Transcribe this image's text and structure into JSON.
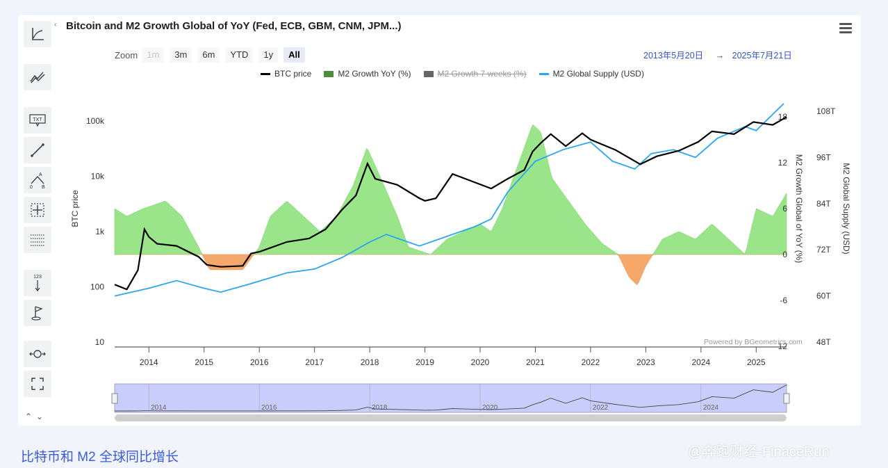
{
  "header": {
    "title": "Bitcoin and M2 Growth Global of YoY (Fed, ECB, GBM, CNM, JPM...)"
  },
  "zoom": {
    "label": "Zoom",
    "buttons": [
      {
        "label": "1m",
        "state": "disabled"
      },
      {
        "label": "3m",
        "state": "normal"
      },
      {
        "label": "6m",
        "state": "normal"
      },
      {
        "label": "YTD",
        "state": "normal"
      },
      {
        "label": "1y",
        "state": "normal"
      },
      {
        "label": "All",
        "state": "active"
      }
    ]
  },
  "date_range": {
    "from": "2013年5月20日",
    "arrow": "→",
    "to": "2025年7月21日"
  },
  "legend": [
    {
      "label": "BTC price",
      "color": "#000000",
      "kind": "line",
      "hidden": false
    },
    {
      "label": "M2 Growth YoY (%)",
      "color": "#4e8d3a",
      "kind": "area",
      "hidden": false
    },
    {
      "label": "M2 Growth 7 weeks (%)",
      "color": "#666666",
      "kind": "area",
      "hidden": true
    },
    {
      "label": "M2 Global Supply (USD)",
      "color": "#2aa6f0",
      "kind": "line",
      "hidden": false
    }
  ],
  "powered_by": "Powered by BGeometrics.com",
  "toolbar": {
    "icons": [
      "axes-icon",
      "indicators-icon",
      "text-annotation-icon",
      "line-draw-icon",
      "measure-ab-icon",
      "crosshair-icon",
      "horizontal-lines-icon",
      "vertical-counter-icon",
      "flag-icon",
      "zoom-reset-icon",
      "fullscreen-icon"
    ],
    "txt_label": "TXT",
    "counter_label": "123",
    "a_label": "A",
    "zero_label": "0",
    "b_label": "B",
    "collapse_glyph": "‹",
    "updown_glyph": "⌃⌄"
  },
  "footer": {
    "caption": "比特币和 M2 全球同比增长",
    "watermark": "@奔跑财经-FinaceRun"
  },
  "chart_data": {
    "type": "line",
    "title": "Bitcoin and M2 Growth Global of YoY (Fed, ECB, GBM, CNM, JPM...)",
    "x_range": [
      "2013-05-20",
      "2025-07-21"
    ],
    "x_ticks": [
      "2014",
      "2015",
      "2016",
      "2017",
      "2018",
      "2019",
      "2020",
      "2021",
      "2022",
      "2023",
      "2024",
      "2025"
    ],
    "navigator_ticks": [
      "2014",
      "2016",
      "2018",
      "2020",
      "2022",
      "2024"
    ],
    "y_left": {
      "label": "BTC price",
      "scale": "log",
      "range": [
        10,
        200000
      ],
      "ticks": [
        "10",
        "100",
        "1k",
        "10k",
        "100k"
      ]
    },
    "y_right1": {
      "label": "M2 Growth Global of YoY (%)",
      "range": [
        -12,
        20
      ],
      "ticks": [
        "-12",
        "-6",
        "0",
        "6",
        "12",
        "18"
      ]
    },
    "y_right2": {
      "label": "M2 Global Supply (USD)",
      "range": [
        48,
        110
      ],
      "ticks": [
        "48T",
        "60T",
        "72T",
        "84T",
        "96T",
        "108T"
      ]
    },
    "series": [
      {
        "name": "BTC price",
        "axis": "left",
        "color": "#000000",
        "x": [
          2013.38,
          2013.6,
          2013.8,
          2013.92,
          2014.0,
          2014.15,
          2014.5,
          2014.9,
          2015.05,
          2015.3,
          2015.7,
          2015.85,
          2016.0,
          2016.5,
          2016.9,
          2017.2,
          2017.5,
          2017.75,
          2017.96,
          2018.1,
          2018.5,
          2018.9,
          2019.0,
          2019.2,
          2019.5,
          2019.8,
          2020.2,
          2020.5,
          2020.8,
          2020.95,
          2021.1,
          2021.28,
          2021.55,
          2021.85,
          2022.0,
          2022.45,
          2022.9,
          2023.2,
          2023.6,
          2023.95,
          2024.2,
          2024.6,
          2024.95,
          2025.3,
          2025.55
        ],
        "values": [
          110,
          90,
          200,
          1100,
          800,
          600,
          550,
          350,
          250,
          230,
          240,
          400,
          430,
          650,
          750,
          1100,
          2500,
          4500,
          17000,
          9000,
          7000,
          4000,
          3600,
          4000,
          11000,
          8500,
          6000,
          9000,
          13000,
          28000,
          40000,
          58000,
          35000,
          60000,
          46000,
          30000,
          16500,
          23000,
          29000,
          42000,
          65000,
          58000,
          96000,
          85000,
          118000
        ]
      },
      {
        "name": "M2 Global Supply (USD)",
        "axis": "right2",
        "color": "#2aa6f0",
        "x": [
          2013.38,
          2014.0,
          2014.5,
          2015.0,
          2015.3,
          2015.8,
          2016.5,
          2017.0,
          2017.5,
          2018.0,
          2018.3,
          2018.9,
          2019.3,
          2019.9,
          2020.2,
          2020.5,
          2021.0,
          2021.5,
          2022.0,
          2022.4,
          2022.8,
          2023.1,
          2023.5,
          2023.9,
          2024.3,
          2024.8,
          2025.0,
          2025.5
        ],
        "values": [
          60,
          62,
          64,
          62,
          61,
          63,
          66,
          67,
          70,
          74,
          76,
          73,
          75,
          78,
          80,
          87,
          95,
          98,
          100,
          95,
          93,
          97,
          98,
          96,
          101,
          104,
          103,
          110
        ]
      },
      {
        "name": "M2 Growth YoY (%)",
        "axis": "right1",
        "color": "#8fe07a",
        "x": [
          2013.38,
          2013.6,
          2013.9,
          2014.3,
          2014.6,
          2014.9,
          2015.1,
          2015.4,
          2015.7,
          2016.0,
          2016.2,
          2016.5,
          2016.8,
          2017.1,
          2017.4,
          2017.7,
          2017.95,
          2018.2,
          2018.5,
          2018.7,
          2018.9,
          2019.1,
          2019.4,
          2019.7,
          2020.0,
          2020.2,
          2020.4,
          2020.7,
          2020.95,
          2021.1,
          2021.3,
          2021.6,
          2021.9,
          2022.2,
          2022.5,
          2022.7,
          2022.85,
          2023.0,
          2023.3,
          2023.6,
          2023.9,
          2024.2,
          2024.5,
          2024.8,
          2025.0,
          2025.3,
          2025.55
        ],
        "values": [
          6,
          5,
          6,
          7,
          5,
          1,
          -2,
          -2,
          -2,
          1,
          5,
          7,
          5,
          3,
          5,
          9,
          14,
          10,
          5,
          1,
          0.5,
          0,
          2,
          3,
          4,
          3,
          6,
          12,
          17,
          16,
          10,
          7,
          4,
          1.5,
          0,
          -3,
          -4,
          -1.5,
          2,
          3,
          2,
          4,
          2,
          0,
          6,
          5,
          8
        ]
      }
    ],
    "legend_placement": "top"
  }
}
